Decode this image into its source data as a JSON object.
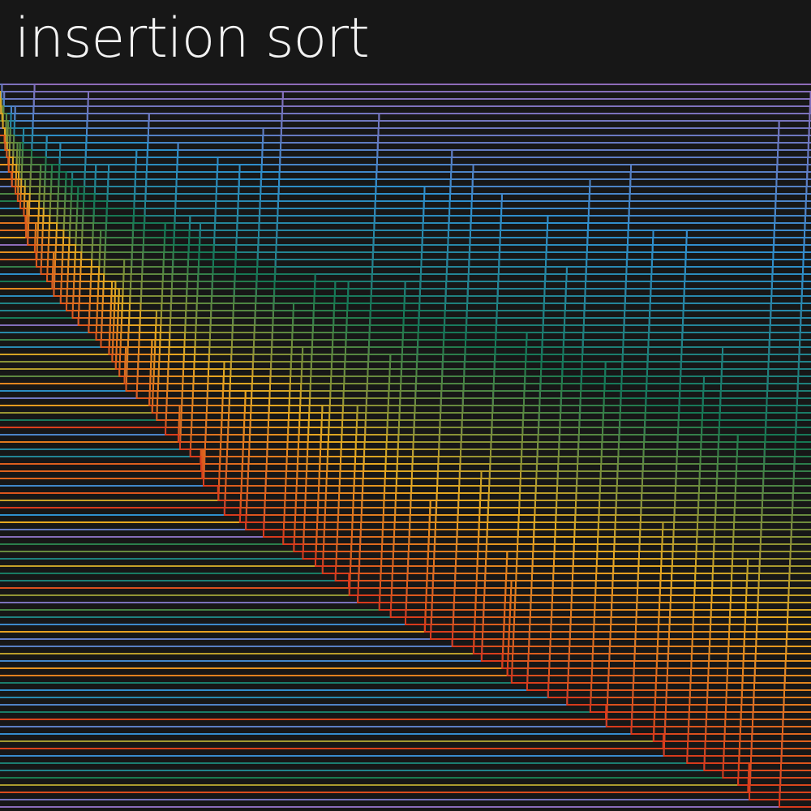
{
  "header": {
    "title": "insertion sort"
  }
}
